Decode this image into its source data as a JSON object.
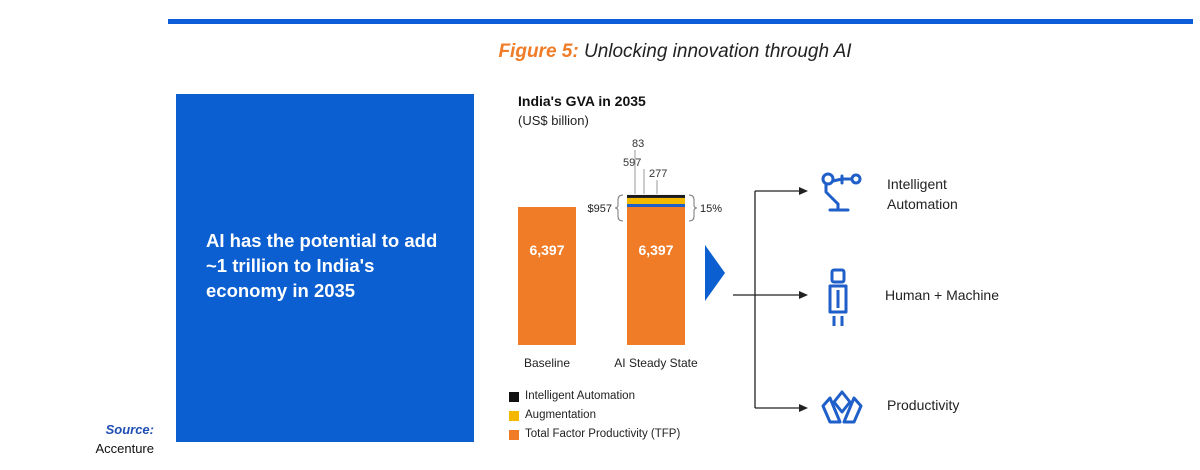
{
  "figure": {
    "number_label": "Figure 5:",
    "title": "Unlocking innovation through AI"
  },
  "callout": {
    "text": "AI has the potential to add ~1 trillion to India's economy in 2035"
  },
  "source": {
    "label": "Source:",
    "name": "Accenture"
  },
  "colors": {
    "accent_blue": "#0b5fd0",
    "tfp": "#f07c28",
    "augmentation": "#f5b800",
    "intelligent_automation": "#1f5fc9"
  },
  "chart_data": {
    "type": "bar",
    "title": "India's GVA in 2035",
    "subtitle": "(US$ billion)",
    "categories": [
      "Baseline",
      "AI Steady State"
    ],
    "series": [
      {
        "name": "Total Factor Productivity (TFP)",
        "values": [
          6397,
          6397
        ],
        "value_labels": [
          "6,397",
          "6,397"
        ]
      },
      {
        "name": "Intelligent Automation",
        "values": [
          0,
          277
        ],
        "value_labels": [
          "",
          "277"
        ]
      },
      {
        "name": "Augmentation",
        "values": [
          0,
          597
        ],
        "value_labels": [
          "",
          "597"
        ]
      },
      {
        "name": "Intelligent Automation (top)",
        "values": [
          0,
          83
        ],
        "value_labels": [
          "",
          "83"
        ]
      }
    ],
    "total_uplift_label": "$957",
    "uplift_percent_label": "15%",
    "legend": [
      {
        "label": "Intelligent Automation",
        "color": "#111111"
      },
      {
        "label": "Augmentation",
        "color": "#f5b800"
      },
      {
        "label": "Total Factor Productivity (TFP)",
        "color": "#f07c28"
      }
    ]
  },
  "outcomes": [
    {
      "icon": "robot-arm-icon",
      "label_line1": "Intelligent",
      "label_line2": "Automation"
    },
    {
      "icon": "human-machine-icon",
      "label_line1": "Human + Machine",
      "label_line2": ""
    },
    {
      "icon": "productivity-icon",
      "label_line1": "Productivity",
      "label_line2": ""
    }
  ]
}
